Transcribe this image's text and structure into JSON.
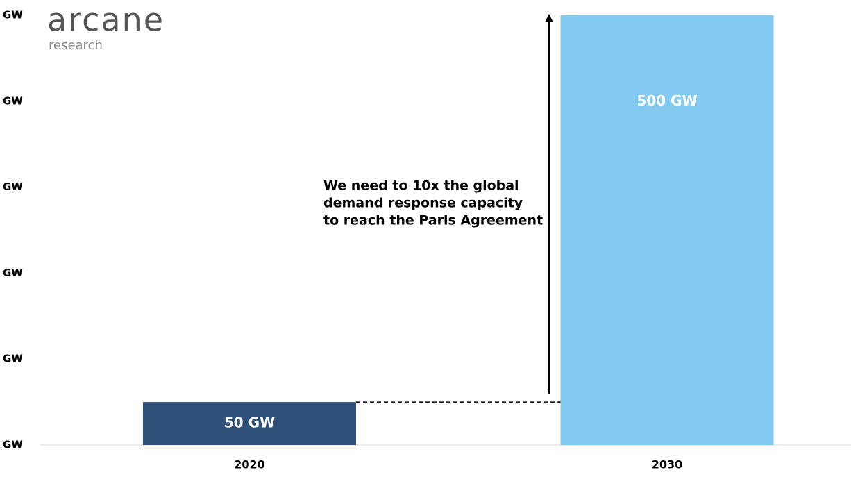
{
  "chart_data": {
    "type": "bar",
    "logo": {
      "name": "arcane",
      "subtitle": "research"
    },
    "annotation": [
      "We need to 10x the global",
      "demand response capacity",
      "to reach the Paris Agreement"
    ],
    "categories": [
      "2020",
      "2030"
    ],
    "values": [
      50,
      500
    ],
    "value_labels": [
      "50 GW",
      "500 GW"
    ],
    "colors": [
      "#2e5079",
      "#82caf0"
    ],
    "ylim": [
      0,
      500
    ],
    "yticks": [
      {
        "value": 0,
        "label": "GW"
      },
      {
        "value": 100,
        "label": "GW"
      },
      {
        "value": 200,
        "label": "GW"
      },
      {
        "value": 300,
        "label": "GW"
      },
      {
        "value": 400,
        "label": "GW"
      },
      {
        "value": 500,
        "label": "GW"
      }
    ],
    "grid": false
  }
}
